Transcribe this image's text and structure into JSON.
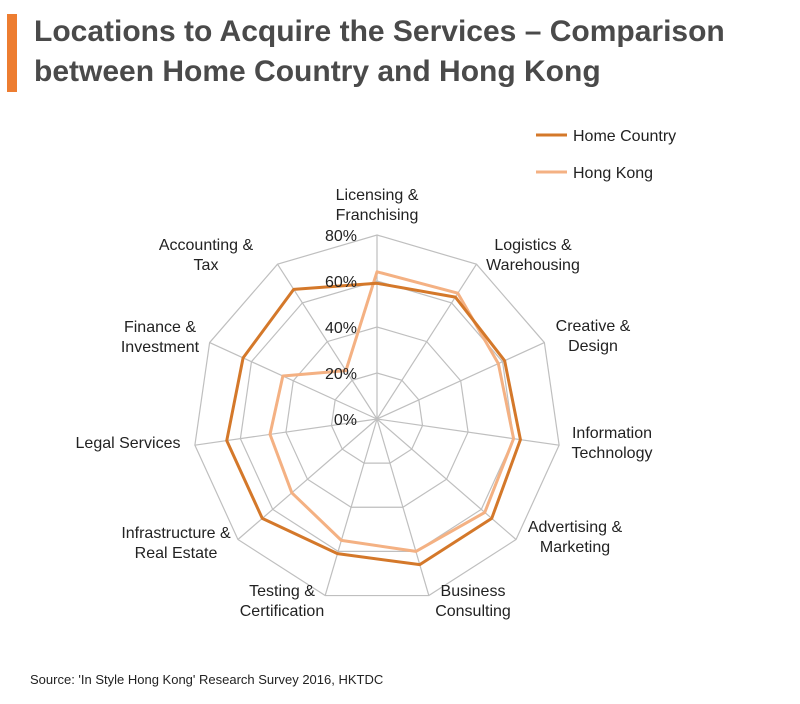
{
  "title": "Locations to Acquire the Services – Comparison between Home Country and Hong Kong",
  "source": "Source: 'In Style Hong Kong' Research Survey 2016, HKTDC",
  "colors": {
    "accent": "#ED7D31",
    "home_country": "#D4782A",
    "hong_kong": "#F4B183",
    "grid": "#BFBFBF"
  },
  "chart_data": {
    "type": "radar",
    "categories": [
      [
        "Licensing &",
        "Franchising"
      ],
      [
        "Logistics &",
        "Warehousing"
      ],
      [
        "Creative &",
        "Design"
      ],
      [
        "Information",
        "Technology"
      ],
      [
        "Advertising &",
        "Marketing"
      ],
      [
        "Business",
        "Consulting"
      ],
      [
        "Testing &",
        "Certification"
      ],
      [
        "Infrastructure &",
        "Real Estate"
      ],
      [
        "Legal Services"
      ],
      [
        "Finance &",
        "Investment"
      ],
      [
        "Accounting &",
        "Tax"
      ]
    ],
    "rlim": [
      0,
      0.8
    ],
    "ticks": [
      "0%",
      "20%",
      "40%",
      "60%",
      "80%"
    ],
    "tick_values": [
      0,
      0.2,
      0.4,
      0.6,
      0.8
    ],
    "legend_position": "top-right",
    "series": [
      {
        "name": "Home Country",
        "values": [
          0.59,
          0.63,
          0.61,
          0.63,
          0.66,
          0.66,
          0.61,
          0.66,
          0.66,
          0.64,
          0.67
        ]
      },
      {
        "name": "Hong Kong",
        "values": [
          0.64,
          0.65,
          0.58,
          0.6,
          0.62,
          0.6,
          0.55,
          0.49,
          0.47,
          0.45,
          0.25
        ]
      }
    ]
  }
}
